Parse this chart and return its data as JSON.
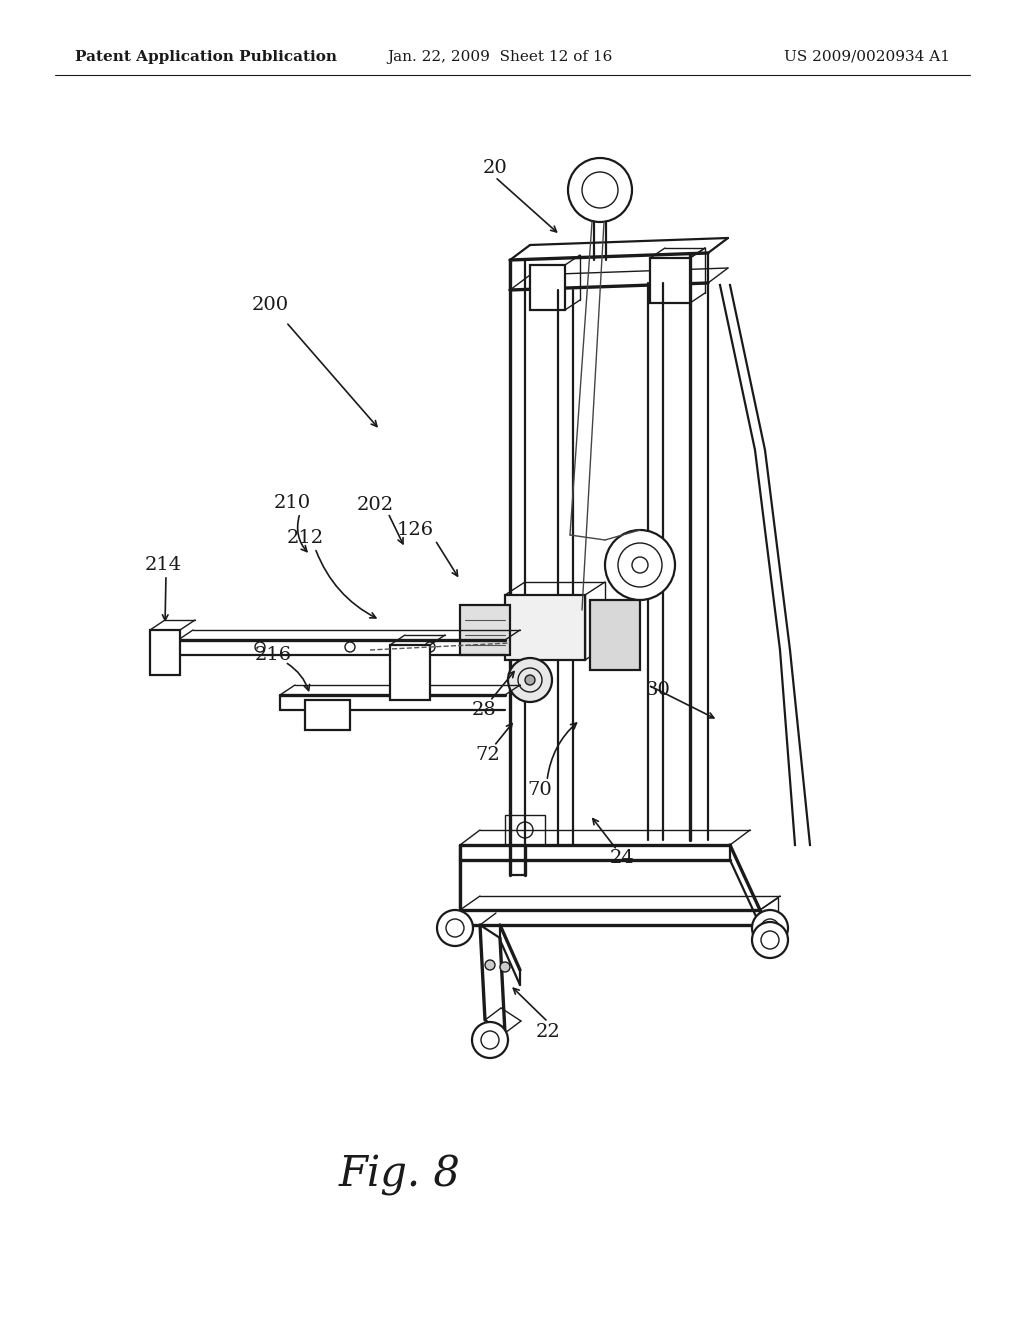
{
  "title_left": "Patent Application Publication",
  "title_mid": "Jan. 22, 2009  Sheet 12 of 16",
  "title_right": "US 2009/0020934 A1",
  "fig_label": "Fig. 8",
  "bg_color": "#ffffff",
  "line_color": "#1a1a1a"
}
